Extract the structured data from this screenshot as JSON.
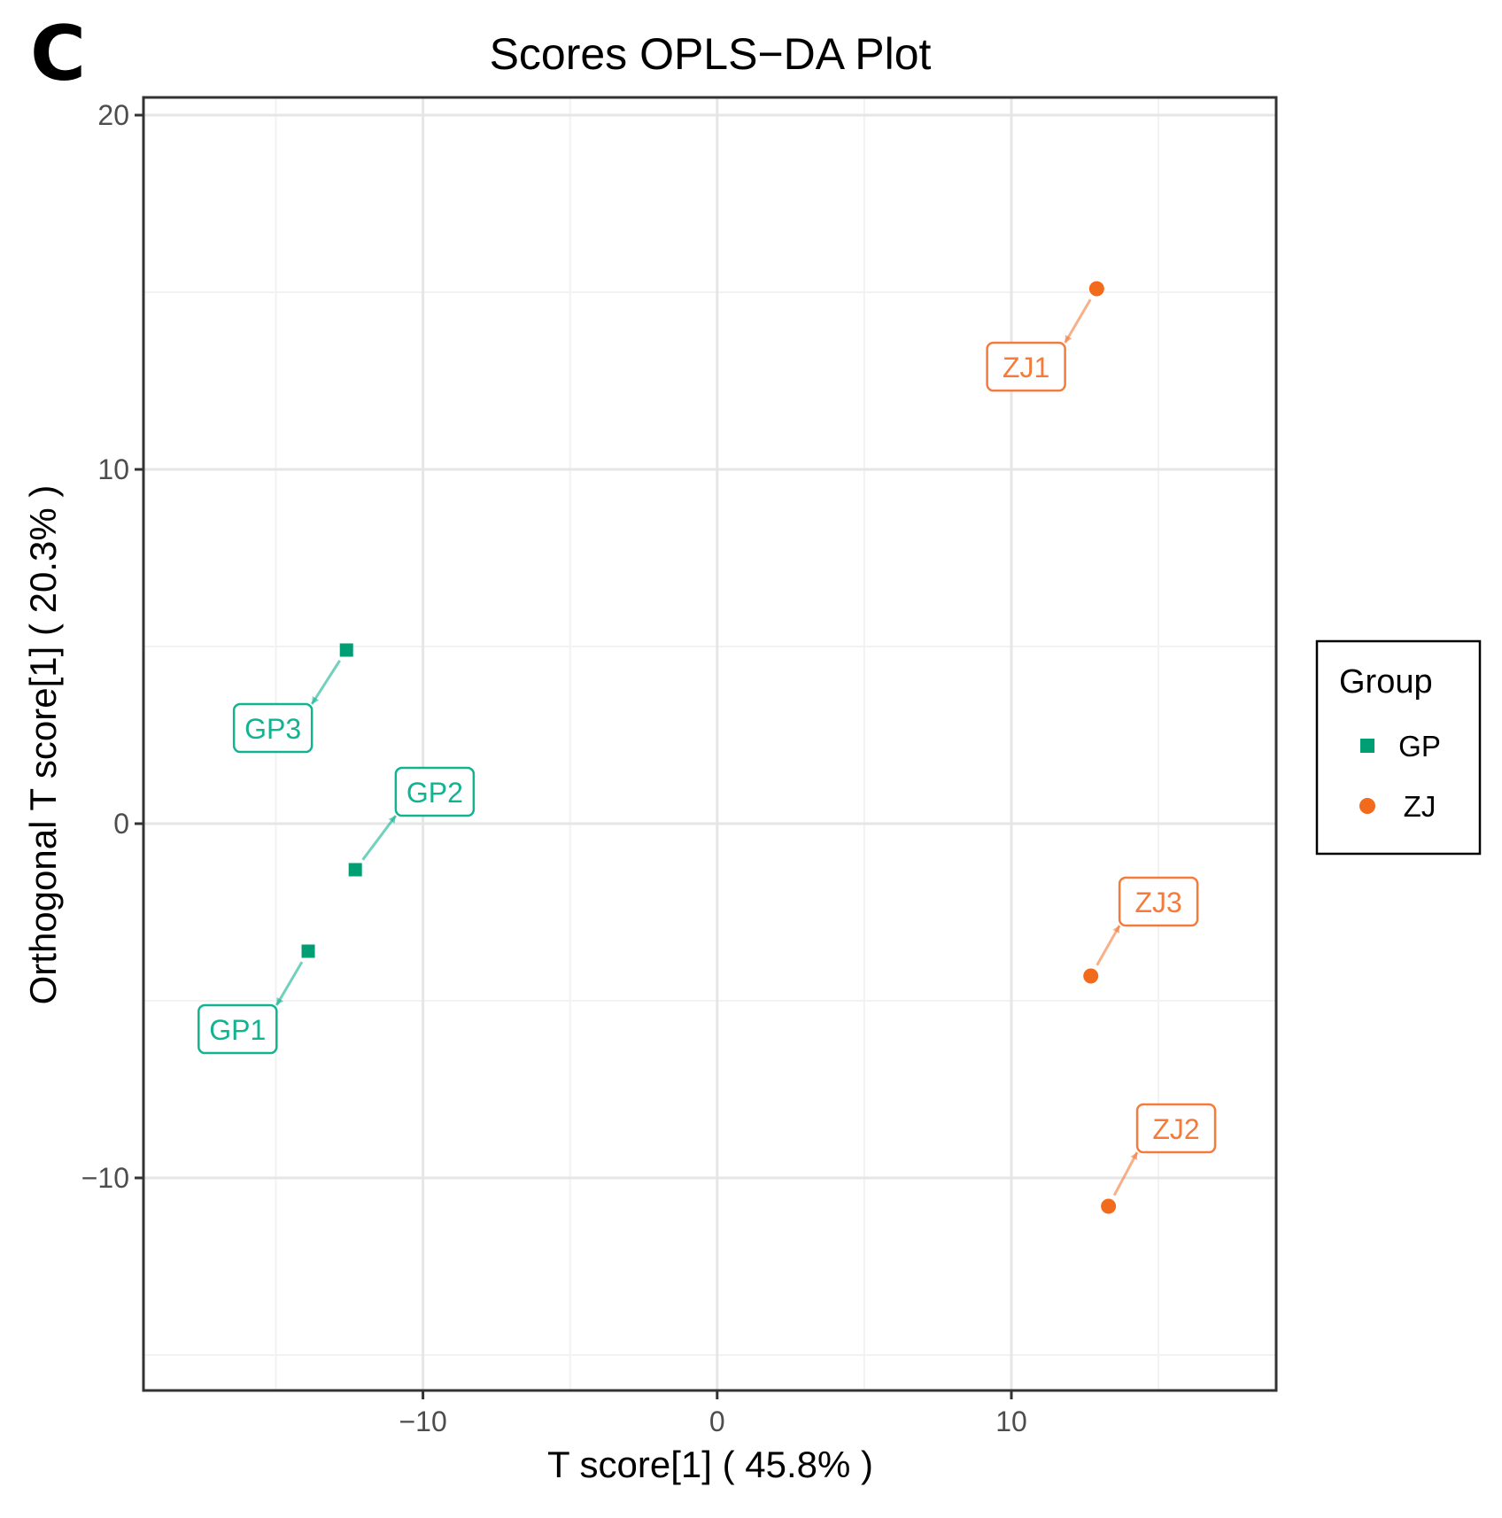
{
  "panel_letter": "C",
  "chart_data": {
    "type": "scatter",
    "title": "Scores OPLS−DA Plot",
    "xlabel": "T score[1] ( 45.8% )",
    "ylabel": "Orthogonal T score[1] ( 20.3% )",
    "xlim": [
      -19.5,
      19
    ],
    "ylim": [
      -16,
      20.5
    ],
    "x_ticks": [
      -10,
      0,
      10
    ],
    "x_tick_labels": [
      "−10",
      "0",
      "10"
    ],
    "x_minor_grid": [
      -15,
      -5,
      5,
      15
    ],
    "y_ticks": [
      20,
      10,
      0,
      -10
    ],
    "y_tick_labels": [
      "20",
      "10",
      "0",
      "−10"
    ],
    "y_minor_grid": [
      15,
      5,
      -5,
      -15
    ],
    "grid": true,
    "legend": {
      "title": "Group",
      "position": "right",
      "entries": [
        {
          "label": "GP",
          "shape": "square",
          "color": "#009E73"
        },
        {
          "label": "ZJ",
          "shape": "circle",
          "color": "#F26A1B"
        }
      ]
    },
    "series": [
      {
        "name": "GP",
        "color": "#009E73",
        "label_color": "#12B391",
        "shape": "square",
        "points": [
          {
            "label": "GP1",
            "x": -13.9,
            "y": -3.6,
            "label_x": -16.3,
            "label_y": -5.8
          },
          {
            "label": "GP2",
            "x": -12.3,
            "y": -1.3,
            "label_x": -9.6,
            "label_y": 0.9
          },
          {
            "label": "GP3",
            "x": -12.6,
            "y": 4.9,
            "label_x": -15.1,
            "label_y": 2.7
          }
        ]
      },
      {
        "name": "ZJ",
        "color": "#F26A1B",
        "label_color": "#F47B3B",
        "shape": "circle",
        "points": [
          {
            "label": "ZJ1",
            "x": 12.9,
            "y": 15.1,
            "label_x": 10.5,
            "label_y": 12.9
          },
          {
            "label": "ZJ2",
            "x": 13.3,
            "y": -10.8,
            "label_x": 15.6,
            "label_y": -8.6
          },
          {
            "label": "ZJ3",
            "x": 12.7,
            "y": -4.3,
            "label_x": 15.0,
            "label_y": -2.2
          }
        ]
      }
    ]
  }
}
